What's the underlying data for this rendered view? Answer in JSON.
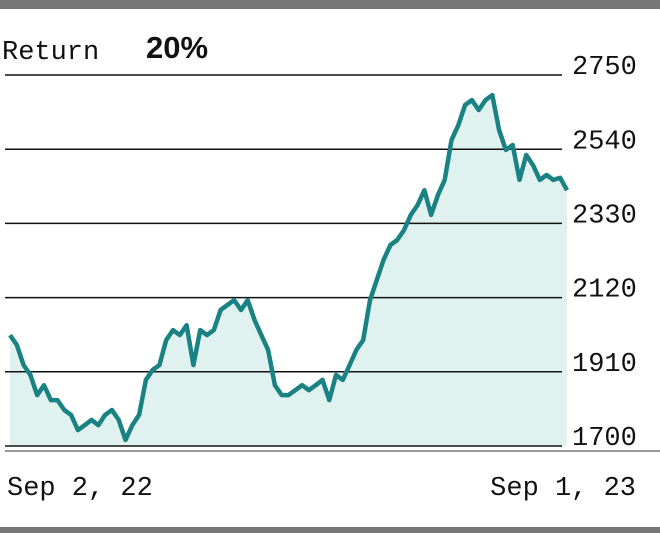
{
  "chart_data": {
    "type": "line",
    "title": "Return",
    "subtitle": "20%",
    "categories": [
      "Sep 2, 22",
      null,
      null,
      null,
      null,
      null,
      null,
      null,
      null,
      null,
      null,
      null,
      null,
      null,
      null,
      null,
      null,
      null,
      null,
      null,
      null,
      null,
      null,
      null,
      null,
      null,
      null,
      null,
      null,
      null,
      null,
      null,
      null,
      null,
      null,
      null,
      null,
      null,
      null,
      null,
      null,
      null,
      null,
      null,
      null,
      null,
      null,
      null,
      null,
      null,
      null,
      null,
      null,
      null,
      null,
      null,
      null,
      null,
      null,
      null,
      null,
      null,
      null,
      null,
      null,
      null,
      null,
      null,
      null,
      null,
      null,
      null,
      null,
      null,
      null,
      null,
      null,
      null,
      null,
      null,
      null,
      null,
      "Sep 1, 23"
    ],
    "values": [
      2014,
      1986,
      1929,
      1901,
      1844,
      1872,
      1830,
      1830,
      1802,
      1788,
      1745,
      1759,
      1774,
      1759,
      1788,
      1802,
      1774,
      1717,
      1759,
      1788,
      1887,
      1915,
      1929,
      2000,
      2028,
      2014,
      2042,
      1929,
      2028,
      2014,
      2028,
      2085,
      2099,
      2113,
      2085,
      2113,
      2057,
      2014,
      1972,
      1872,
      1844,
      1844,
      1858,
      1872,
      1858,
      1872,
      1887,
      1830,
      1901,
      1887,
      1929,
      1972,
      2000,
      2113,
      2170,
      2227,
      2269,
      2283,
      2311,
      2354,
      2382,
      2424,
      2354,
      2410,
      2453,
      2566,
      2608,
      2665,
      2679,
      2651,
      2679,
      2693,
      2594,
      2538,
      2552,
      2453,
      2524,
      2495,
      2453,
      2467,
      2453,
      2459,
      2424
    ],
    "color": "#1a8282",
    "fill": "#dff2f0",
    "ylim": [
      1700,
      2750
    ],
    "yticks": [
      1700,
      1910,
      2120,
      2330,
      2540,
      2750
    ],
    "grid": true
  }
}
